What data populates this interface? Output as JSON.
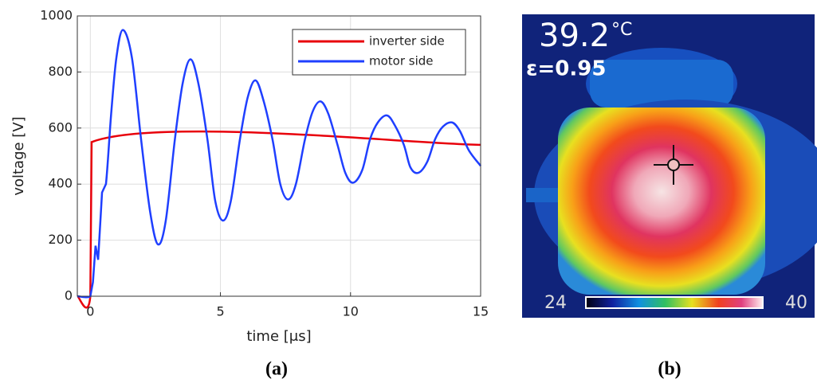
{
  "chart_data": {
    "type": "line",
    "xlabel": "time [μs]",
    "ylabel": "voltage [V]",
    "caption": "(a)",
    "xlim": [
      -0.5,
      15
    ],
    "xticks": [
      0,
      5,
      10,
      15
    ],
    "ylim": [
      0,
      1000
    ],
    "yticks": [
      0,
      200,
      400,
      600,
      800,
      1000
    ],
    "grid": true,
    "legend": "upper right",
    "series": [
      {
        "name": "inverter side",
        "color": "#e8000b",
        "x": [
          -0.5,
          0,
          0.05,
          15
        ],
        "values": [
          0,
          0,
          550,
          540
        ]
      },
      {
        "name": "motor side",
        "color": "#1f3fff",
        "x": [
          -0.5,
          0,
          0.1,
          0.2,
          0.3,
          0.45,
          0.6,
          0.8,
          1.0,
          1.25,
          1.6,
          1.95,
          2.3,
          2.6,
          2.9,
          3.25,
          3.55,
          3.85,
          4.15,
          4.5,
          4.8,
          5.1,
          5.4,
          5.75,
          6.05,
          6.35,
          6.65,
          7.0,
          7.3,
          7.6,
          7.9,
          8.25,
          8.55,
          8.85,
          9.15,
          9.5,
          9.8,
          10.1,
          10.45,
          10.75,
          11.05,
          11.4,
          11.7,
          12.05,
          12.3,
          12.6,
          12.95,
          13.25,
          13.55,
          13.9,
          14.2,
          14.55,
          15
        ],
        "values": [
          0,
          0,
          50,
          180,
          130,
          370,
          400,
          650,
          850,
          950,
          850,
          560,
          300,
          185,
          270,
          560,
          760,
          845,
          760,
          560,
          340,
          270,
          340,
          560,
          710,
          770,
          700,
          560,
          400,
          345,
          400,
          560,
          660,
          695,
          650,
          540,
          440,
          405,
          450,
          560,
          620,
          645,
          610,
          540,
          460,
          440,
          480,
          560,
          605,
          620,
          590,
          520,
          465
        ]
      }
    ]
  },
  "thermal_image": {
    "temperature": "39.2",
    "unit": "°C",
    "emissivity": "ε=0.95",
    "scale_min": "24",
    "scale_max": "40",
    "caption": "(b)"
  }
}
